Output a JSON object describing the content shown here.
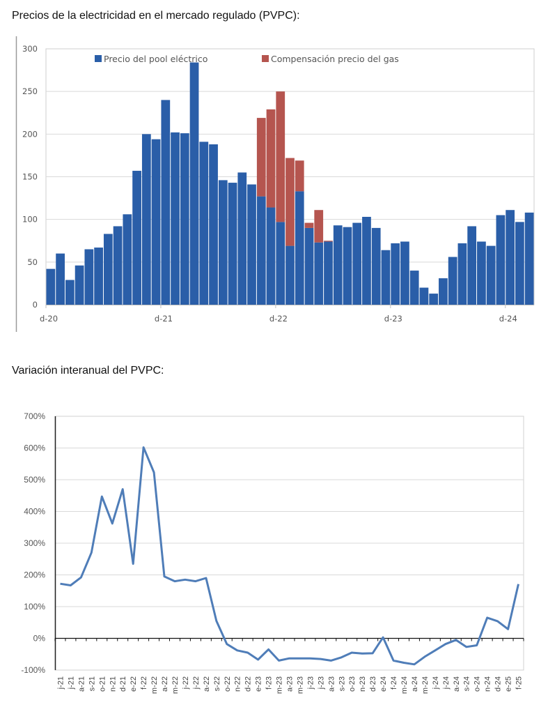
{
  "titles": {
    "chart1": "Precios de la electricidad en el mercado regulado (PVPC):",
    "chart2": "Variación interanual del PVPC:"
  },
  "colors": {
    "pool": "#2a5ea8",
    "gas": "#b5554f",
    "line": "#4f7db8",
    "grid": "#d9d9d9"
  },
  "chart_data": [
    {
      "type": "bar",
      "stacked": true,
      "title": "Precios de la electricidad en el mercado regulado (PVPC):",
      "xlabel": "",
      "ylabel": "",
      "ylim": [
        0,
        300
      ],
      "yticks": [
        0,
        50,
        100,
        150,
        200,
        250,
        300
      ],
      "ytick_labels": [
        "0",
        "50",
        "100",
        "150",
        "200",
        "250",
        "300"
      ],
      "grid": true,
      "legend": "top",
      "xtick_labels": [
        {
          "label": "d-20",
          "index": 0
        },
        {
          "label": "d-21",
          "index": 12
        },
        {
          "label": "d-22",
          "index": 24
        },
        {
          "label": "d-23",
          "index": 36
        },
        {
          "label": "d-24",
          "index": 48
        }
      ],
      "series": [
        {
          "name": "Precio del pool eléctrico",
          "values": [
            42,
            60,
            29,
            46,
            65,
            67,
            83,
            92,
            106,
            157,
            200,
            194,
            240,
            202,
            201,
            284,
            191,
            188,
            146,
            143,
            155,
            141,
            127,
            114,
            97,
            69,
            133,
            90,
            73,
            74,
            93,
            91,
            96,
            103,
            90,
            64,
            72,
            74,
            40,
            20,
            13,
            31,
            56,
            72,
            92,
            74,
            69,
            105,
            111,
            97,
            108
          ]
        },
        {
          "name": "Compensación precio del gas",
          "values": [
            0,
            0,
            0,
            0,
            0,
            0,
            0,
            0,
            0,
            0,
            0,
            0,
            0,
            0,
            0,
            0,
            0,
            0,
            0,
            0,
            0,
            0,
            92,
            115,
            153,
            103,
            36,
            6,
            38,
            1,
            0,
            0,
            0,
            0,
            0,
            0,
            0,
            0,
            0,
            0,
            0,
            0,
            0,
            0,
            0,
            0,
            0,
            0,
            0,
            0,
            0
          ]
        }
      ]
    },
    {
      "type": "line",
      "title": "Variación interanual del PVPC:",
      "xlabel": "",
      "ylabel": "",
      "ylim": [
        -100,
        700
      ],
      "yticks": [
        -100,
        0,
        100,
        200,
        300,
        400,
        500,
        600,
        700
      ],
      "ytick_labels": [
        "-100%",
        "0%",
        "100%",
        "200%",
        "300%",
        "400%",
        "500%",
        "600%",
        "700%"
      ],
      "grid": true,
      "legend": "none",
      "categories": [
        "j-21",
        "j-21",
        "a-21",
        "s-21",
        "o-21",
        "n-21",
        "d-21",
        "e-22",
        "f-22",
        "m-22",
        "a-22",
        "m-22",
        "j-22",
        "j-22",
        "a-22",
        "s-22",
        "o-22",
        "n-22",
        "d-22",
        "e-23",
        "f-23",
        "m-23",
        "a-23",
        "m-23",
        "j-23",
        "j-23",
        "a-23",
        "s-23",
        "o-23",
        "n-23",
        "d-23",
        "e-24",
        "f-24",
        "m-24",
        "a-24",
        "m-24",
        "j-24",
        "j-24",
        "a-24",
        "s-24",
        "o-24",
        "n-24",
        "d-24",
        "e-25",
        "f-25"
      ],
      "series": [
        {
          "name": "Variación interanual",
          "values": [
            172,
            167,
            192,
            270,
            447,
            362,
            470,
            235,
            602,
            523,
            195,
            180,
            185,
            180,
            190,
            55,
            -18,
            -38,
            -45,
            -67,
            -35,
            -70,
            -63,
            -63,
            -63,
            -65,
            -70,
            -60,
            -45,
            -48,
            -47,
            3,
            -70,
            -77,
            -82,
            -58,
            -38,
            -18,
            -5,
            -27,
            -22,
            65,
            54,
            29,
            171
          ]
        }
      ]
    }
  ]
}
